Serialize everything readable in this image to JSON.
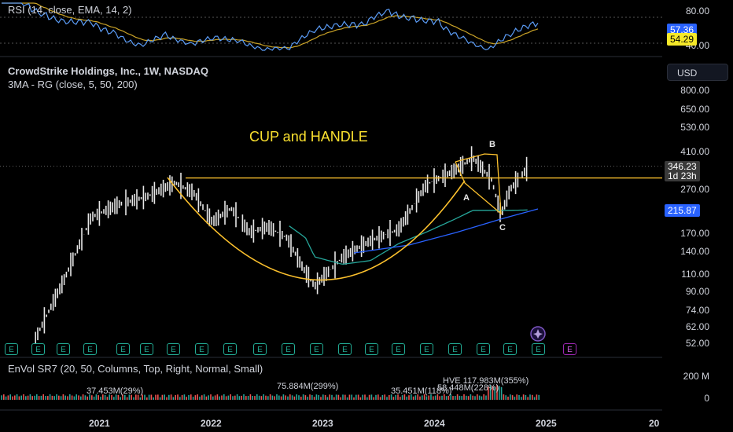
{
  "rsi": {
    "title": "RSI (14, close, EMA, 14, 2)",
    "axis_labels": [
      "80.00",
      "40.00"
    ],
    "value": "57.36",
    "ema_value": "54.29"
  },
  "main": {
    "symbol_title": "CrowdStrike Holdings, Inc., 1W, NASDAQ",
    "indicator": "3MA - RG (close, 5, 50, 200)",
    "currency": "USD",
    "annotation": "CUP and HANDLE",
    "point_labels": [
      "A",
      "B",
      "C"
    ],
    "price_axis": [
      "800.00",
      "650.00",
      "530.00",
      "410.00",
      "270.00",
      "170.00",
      "140.00",
      "110.00",
      "90.00",
      "74.00",
      "62.00",
      "52.00"
    ],
    "last_price": "346.23",
    "countdown": "1d 23h",
    "ma_price": "215.87"
  },
  "volume": {
    "title": "EnVol SR7 (20, 50, Columns, Top, Right, Normal, Small)",
    "axis_labels": [
      "200 M",
      "0"
    ],
    "annotations": [
      "HVE 117.983M(355%)",
      "75.884M(299%)",
      "37.453M(29%)",
      "35.451M(118%)",
      "58.448M(228%)"
    ]
  },
  "earnings_badge": "E",
  "x_axis": [
    "2021",
    "2022",
    "2023",
    "2024",
    "2025",
    "20"
  ],
  "colors": {
    "candle": "#e6e6e6",
    "cup": "#fbc02d",
    "ma_teal": "#26a69a",
    "ma_blue": "#2962ff",
    "rsi_line": "#5b9cf6",
    "rsi_ema": "#c9a227",
    "price_tag": "#3a3a3a",
    "ma_tag": "#2962ff",
    "rsi_tag": "#2962ff",
    "ema_tag": "#f5e829"
  },
  "chart_data": {
    "type": "line",
    "title": "CrowdStrike Holdings, Inc., 1W, NASDAQ",
    "scale": "log",
    "ylim": [
      45,
      900
    ],
    "x": [
      "2020-06",
      "2020-09",
      "2020-12",
      "2021-03",
      "2021-06",
      "2021-09",
      "2021-11",
      "2022-01",
      "2022-03",
      "2022-05",
      "2022-07",
      "2022-09",
      "2022-11",
      "2022-12",
      "2023-03",
      "2023-06",
      "2023-09",
      "2023-12",
      "2024-03",
      "2024-05",
      "2024-07",
      "2024-08",
      "2024-09",
      "2024-11"
    ],
    "series": [
      {
        "name": "CrowdStrike Holdings, Inc.",
        "values": [
          54,
          100,
          200,
          230,
          250,
          290,
          260,
          190,
          220,
          170,
          180,
          160,
          110,
          95,
          130,
          155,
          175,
          285,
          330,
          380,
          300,
          205,
          270,
          346.23
        ]
      },
      {
        "name": "",
        "values": [
          null,
          null,
          null,
          null,
          null,
          null,
          null,
          null,
          null,
          null,
          null,
          185,
          160,
          130,
          120,
          125,
          150,
          170,
          195,
          215,
          215,
          215,
          215,
          215.87
        ]
      }
    ],
    "price_level": 305
  }
}
